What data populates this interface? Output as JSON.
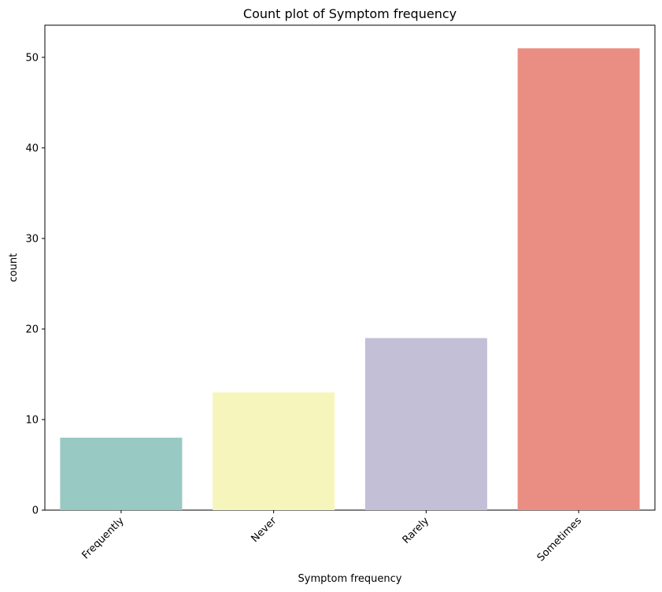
{
  "chart_data": {
    "type": "bar",
    "title": "Count plot of Symptom frequency",
    "xlabel": "Symptom frequency",
    "ylabel": "count",
    "categories": [
      "Frequently",
      "Never",
      "Rarely",
      "Sometimes"
    ],
    "values": [
      8,
      13,
      19,
      51
    ],
    "colors": [
      "#98c9c3",
      "#f6f6bc",
      "#c3bfd6",
      "#ea8e83"
    ],
    "ylim": [
      0,
      53.55
    ],
    "yticks": [
      0,
      10,
      20,
      30,
      40,
      50
    ],
    "ytick_labels": [
      "0",
      "10",
      "20",
      "30",
      "40",
      "50"
    ],
    "grid": false,
    "legend": "none"
  }
}
